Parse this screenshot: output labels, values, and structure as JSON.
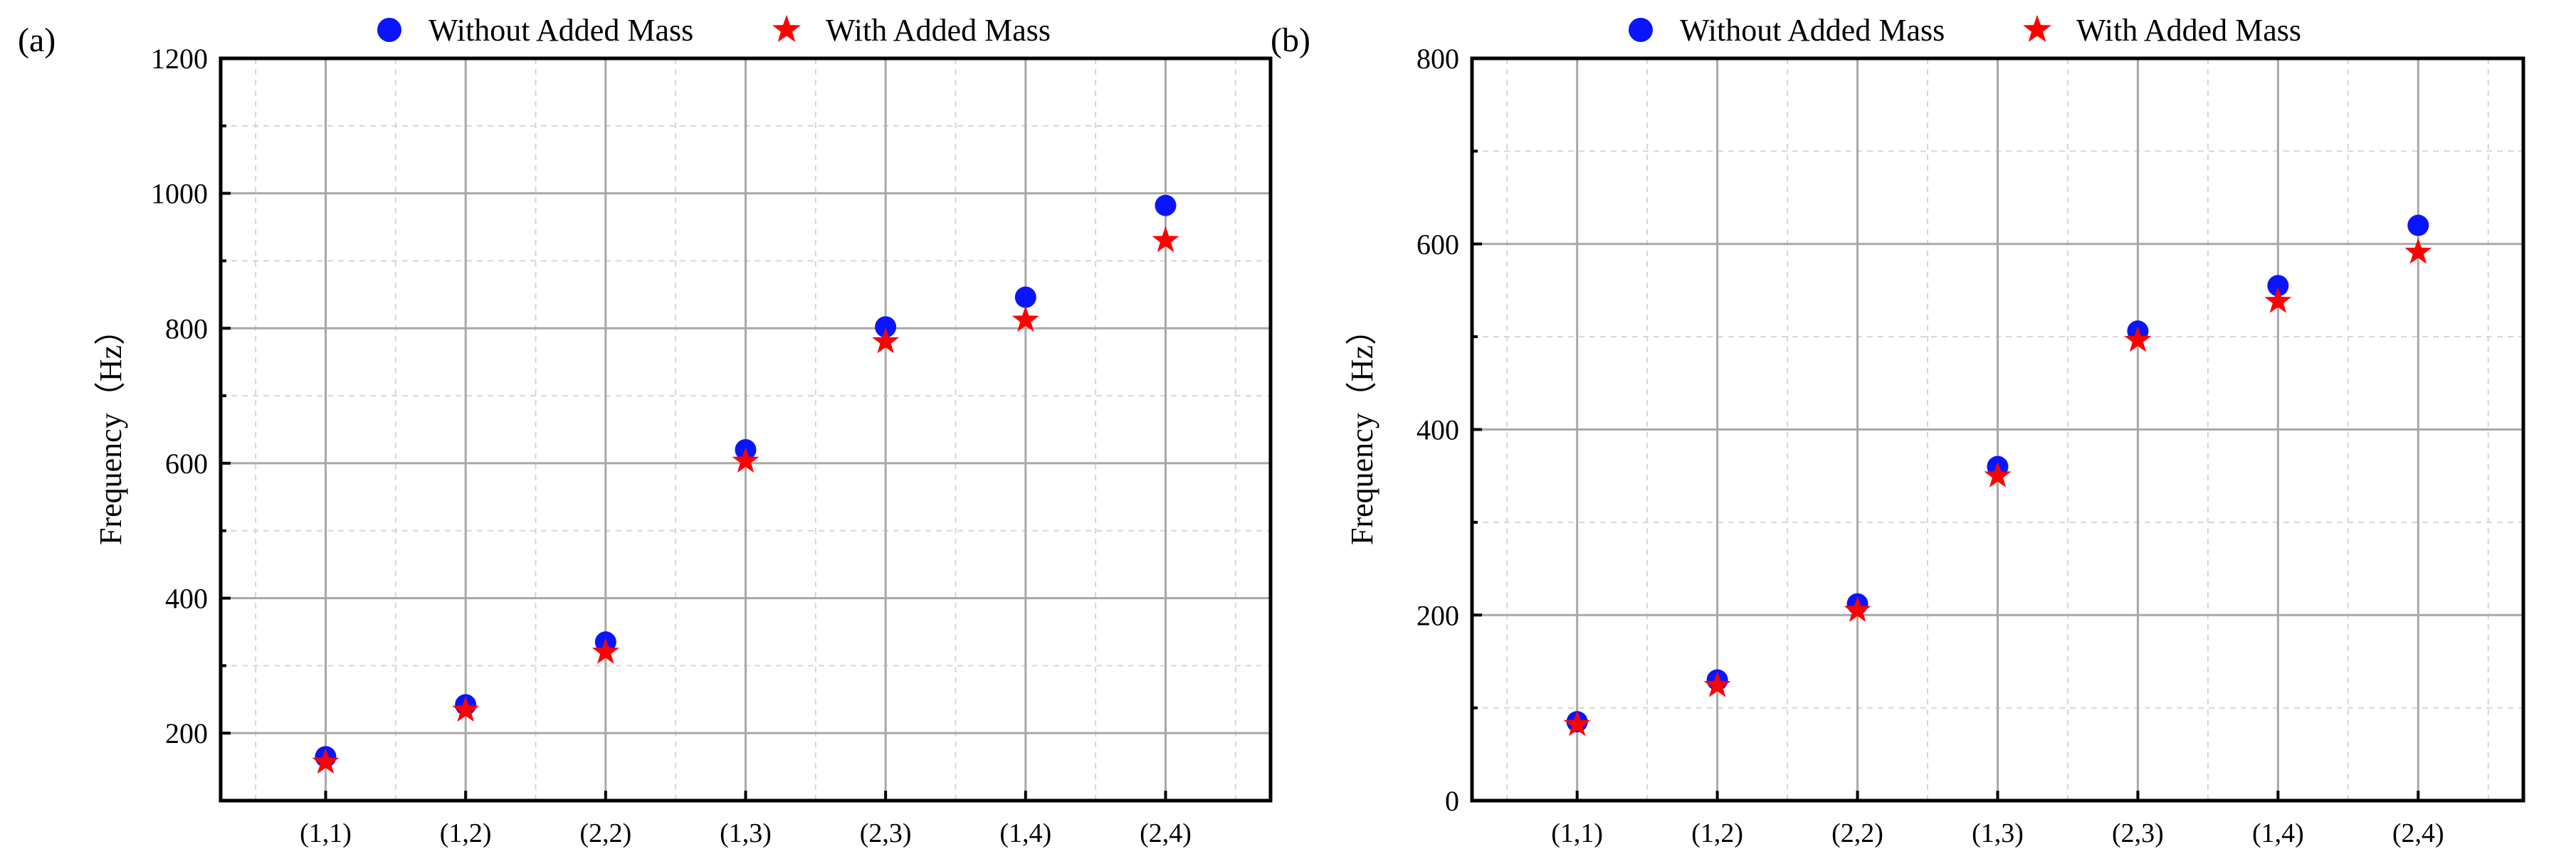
{
  "colors": {
    "without": "#0a14ff",
    "with": "#ff0000",
    "axis": "#000000",
    "grid_major": "#a8a8a8",
    "grid_minor": "#d6d6d6"
  },
  "chart_data": [
    {
      "type": "scatter",
      "panel_label": "(a)",
      "categories": [
        "(1,1)",
        "(1,2)",
        "(2,2)",
        "(1,3)",
        "(2,3)",
        "(1,4)",
        "(2,4)"
      ],
      "series": [
        {
          "name": "Without Added Mass",
          "marker": "circle",
          "values": [
            165,
            242,
            335,
            620,
            802,
            846,
            982
          ]
        },
        {
          "name": "With Added Mass",
          "marker": "star",
          "values": [
            157,
            234,
            320,
            603,
            780,
            812,
            930
          ]
        }
      ],
      "title": "",
      "xlabel": "",
      "ylabel": "Frequency（Hz）",
      "ylim": [
        100,
        1200
      ],
      "yticks": [
        200,
        400,
        600,
        800,
        1000,
        1200
      ],
      "grid": true,
      "legend": "top"
    },
    {
      "type": "scatter",
      "panel_label": "(b)",
      "categories": [
        "(1,1)",
        "(1,2)",
        "(2,2)",
        "(1,3)",
        "(2,3)",
        "(1,4)",
        "(2,4)"
      ],
      "series": [
        {
          "name": "Without Added Mass",
          "marker": "circle",
          "values": [
            85,
            130,
            212,
            360,
            506,
            555,
            620
          ]
        },
        {
          "name": "With Added Mass",
          "marker": "star",
          "values": [
            82,
            124,
            205,
            350,
            496,
            538,
            591
          ]
        }
      ],
      "title": "",
      "xlabel": "",
      "ylabel": "Frequency（Hz）",
      "ylim": [
        0,
        800
      ],
      "yticks": [
        0,
        200,
        400,
        600,
        800
      ],
      "grid": true,
      "legend": "top"
    }
  ]
}
